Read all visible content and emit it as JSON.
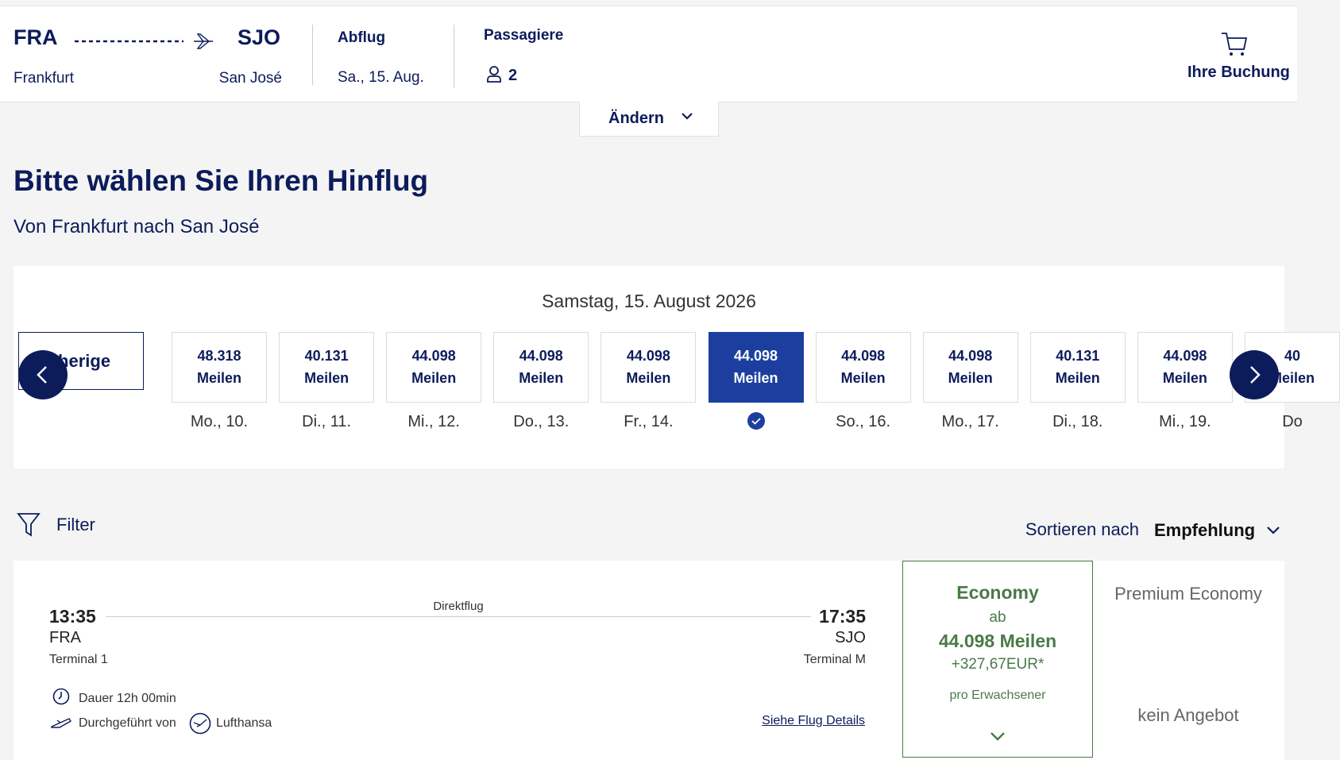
{
  "header": {
    "origin_code": "FRA",
    "origin_city": "Frankfurt",
    "destination_code": "SJO",
    "destination_city": "San José",
    "departure_label": "Abflug",
    "departure_date": "Sa., 15. Aug.",
    "passengers_label": "Passagiere",
    "passengers": "2",
    "cart_label": "Ihre Buchung",
    "change_button": "Ändern"
  },
  "title": "Bitte wählen Sie Ihren Hinflug",
  "subtitle": "Von Frankfurt nach San José",
  "date_strip": {
    "heading": "Samstag, 15. August 2026",
    "previous_button": "Vorherige",
    "days": [
      {
        "price": "48.318",
        "unit": "Meilen",
        "label": "Mo., 10."
      },
      {
        "price": "40.131",
        "unit": "Meilen",
        "label": "Di., 11."
      },
      {
        "price": "44.098",
        "unit": "Meilen",
        "label": "Mi., 12."
      },
      {
        "price": "44.098",
        "unit": "Meilen",
        "label": "Do., 13."
      },
      {
        "price": "44.098",
        "unit": "Meilen",
        "label": "Fr., 14."
      },
      {
        "price": "44.098",
        "unit": "Meilen",
        "selected": true
      },
      {
        "price": "44.098",
        "unit": "Meilen",
        "label": "So., 16."
      },
      {
        "price": "44.098",
        "unit": "Meilen",
        "label": "Mo., 17."
      },
      {
        "price": "40.131",
        "unit": "Meilen",
        "label": "Di., 18."
      },
      {
        "price": "44.098",
        "unit": "Meilen",
        "label": "Mi., 19."
      },
      {
        "price": "40",
        "unit": "Meilen",
        "label": "Do"
      }
    ]
  },
  "filter": "Filter",
  "sort_label": "Sortieren nach",
  "sort_value": "Empfehlung",
  "flight": {
    "departure_time": "13:35",
    "departure_airport": "FRA",
    "departure_terminal": "Terminal 1",
    "flight_type": "Direktflug",
    "arrival_time": "17:35",
    "arrival_airport": "SJO",
    "arrival_terminal": "Terminal M",
    "duration": "Dauer 12h 00min",
    "operated_by": "Durchgeführt von",
    "airline": "Lufthansa",
    "details_link": "Siehe Flug Details",
    "fares": {
      "economy": {
        "name": "Economy",
        "from": "ab",
        "price": "44.098 Meilen",
        "surcharge": "+327,67EUR*",
        "per": "pro Erwachsener"
      },
      "premium": {
        "name": "Premium Economy",
        "status": "kein Angebot"
      }
    }
  }
}
